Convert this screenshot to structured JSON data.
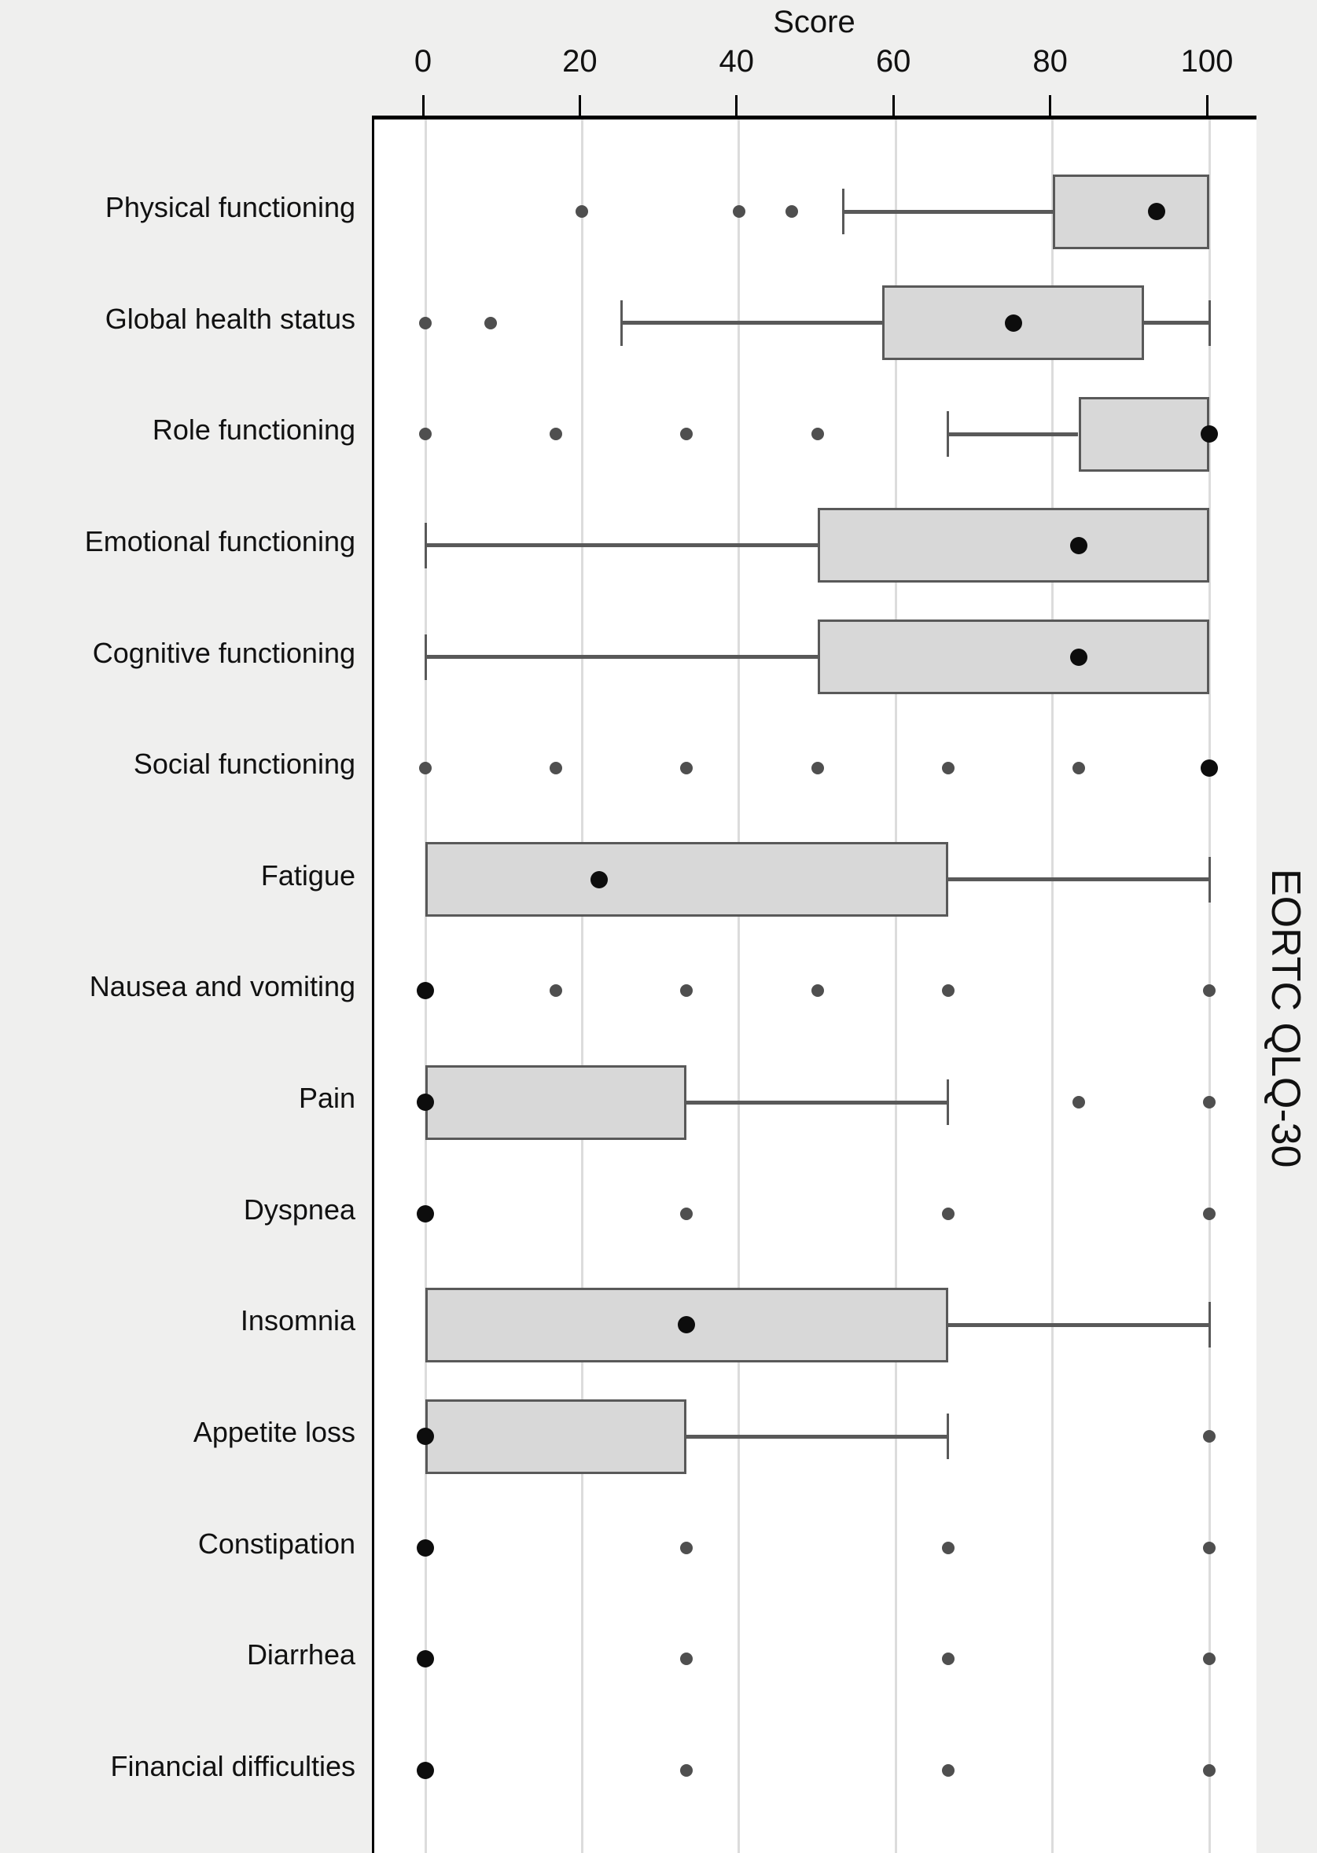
{
  "title": "Score",
  "right_axis_label": "EORTC QLQ-30",
  "colors": {
    "figure_background": "#efefee",
    "plot_background": "#ffffff",
    "gridline": "#dcdcdc",
    "axis": "#000000",
    "box_fill": "#d8d8d8",
    "box_border": "#595959",
    "whisker": "#595959",
    "outlier_dot": "#4f4f4f",
    "marker_dot": "#0d0d0d",
    "text": "#111111"
  },
  "chart_data": {
    "type": "boxplot",
    "orientation": "horizontal",
    "title": "Score",
    "xlabel": "Score",
    "right_label": "EORTC QLQ-30",
    "x_axis": {
      "min": 0,
      "max": 100,
      "ticks": [
        0,
        20,
        40,
        60,
        80,
        100
      ],
      "position": "top"
    },
    "grid": true,
    "categories": [
      "Physical functioning",
      "Global health status",
      "Role functioning",
      "Emotional functioning",
      "Cognitive functioning",
      "Social functioning",
      "Fatigue",
      "Nausea and vomiting",
      "Pain",
      "Dyspnea",
      "Insomnia",
      "Appetite loss",
      "Constipation",
      "Diarrhea",
      "Financial difficulties"
    ],
    "series": [
      {
        "label": "Physical functioning",
        "box": {
          "whisker_min": 53.3,
          "q1": 80,
          "q3": 100,
          "whisker_max": 100
        },
        "marker": 93.3,
        "outliers": [
          20,
          40,
          46.7
        ]
      },
      {
        "label": "Global health status",
        "box": {
          "whisker_min": 25,
          "q1": 58.3,
          "q3": 91.7,
          "whisker_max": 100
        },
        "marker": 75,
        "outliers": [
          0,
          8.3
        ]
      },
      {
        "label": "Role functioning",
        "box": {
          "whisker_min": 66.7,
          "q1": 83.3,
          "q3": 100,
          "whisker_max": 100
        },
        "marker": 100,
        "outliers": [
          0,
          16.7,
          33.3,
          50
        ]
      },
      {
        "label": "Emotional functioning",
        "box": {
          "whisker_min": 0,
          "q1": 50,
          "q3": 100,
          "whisker_max": 100
        },
        "marker": 83.3,
        "outliers": []
      },
      {
        "label": "Cognitive functioning",
        "box": {
          "whisker_min": 0,
          "q1": 50,
          "q3": 100,
          "whisker_max": 100
        },
        "marker": 83.3,
        "outliers": []
      },
      {
        "label": "Social functioning",
        "box": null,
        "marker": 100,
        "outliers": [
          0,
          16.7,
          33.3,
          50,
          66.7,
          83.3
        ]
      },
      {
        "label": "Fatigue",
        "box": {
          "whisker_min": 0,
          "q1": 0,
          "q3": 66.7,
          "whisker_max": 100
        },
        "marker": 22.2,
        "outliers": []
      },
      {
        "label": "Nausea and vomiting",
        "box": null,
        "marker": 0,
        "outliers": [
          16.7,
          33.3,
          50,
          66.7,
          100
        ]
      },
      {
        "label": "Pain",
        "box": {
          "whisker_min": 0,
          "q1": 0,
          "q3": 33.3,
          "whisker_max": 66.7
        },
        "marker": 0,
        "outliers": [
          83.3,
          100
        ]
      },
      {
        "label": "Dyspnea",
        "box": null,
        "marker": 0,
        "outliers": [
          33.3,
          66.7,
          100
        ]
      },
      {
        "label": "Insomnia",
        "box": {
          "whisker_min": 0,
          "q1": 0,
          "q3": 66.7,
          "whisker_max": 100
        },
        "marker": 33.3,
        "outliers": []
      },
      {
        "label": "Appetite loss",
        "box": {
          "whisker_min": 0,
          "q1": 0,
          "q3": 33.3,
          "whisker_max": 66.7
        },
        "marker": 0,
        "outliers": [
          100
        ]
      },
      {
        "label": "Constipation",
        "box": null,
        "marker": 0,
        "outliers": [
          33.3,
          66.7,
          100
        ]
      },
      {
        "label": "Diarrhea",
        "box": null,
        "marker": 0,
        "outliers": [
          33.3,
          66.7,
          100
        ]
      },
      {
        "label": "Financial difficulties",
        "box": null,
        "marker": 0,
        "outliers": [
          33.3,
          66.7,
          100
        ]
      }
    ]
  }
}
